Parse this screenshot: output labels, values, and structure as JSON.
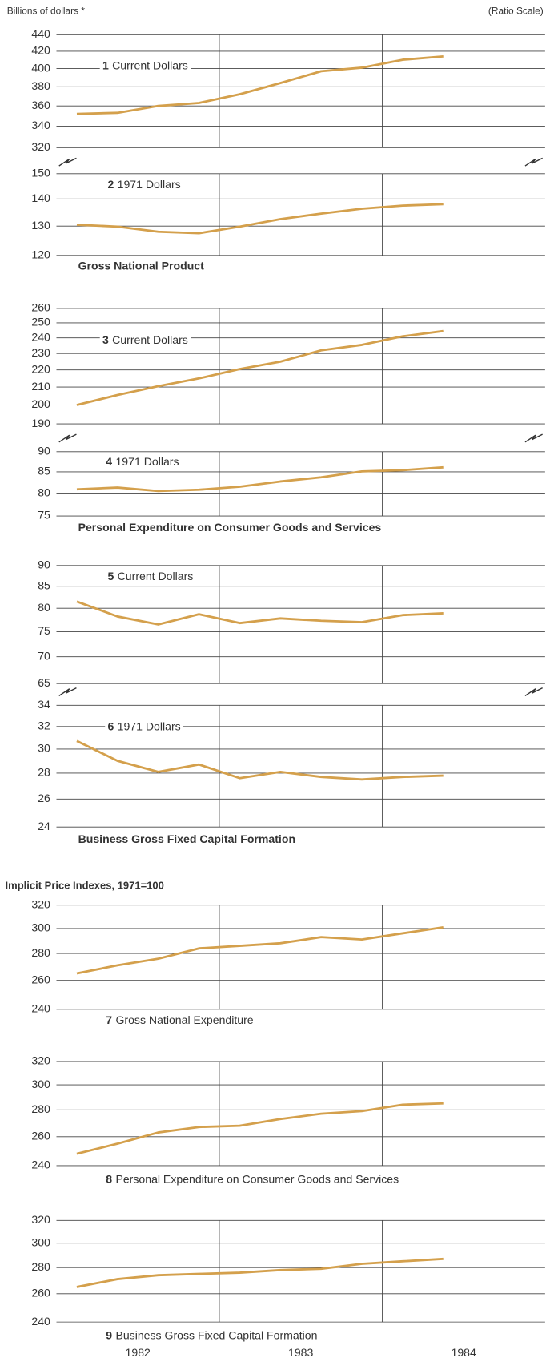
{
  "chart_data": {
    "type": "line",
    "log": true,
    "grid": true,
    "color": "#d4a04c",
    "header_left": "Billions of dollars *",
    "header_right": "(Ratio Scale)",
    "price_title": "Implicit Price Indexes, 1971=100",
    "captions": [
      "Gross National Product",
      "Personal Expenditure on Consumer Goods and Services",
      "Business Gross Fixed Capital Formation"
    ],
    "x": [
      1982.125,
      1982.375,
      1982.625,
      1982.875,
      1983.125,
      1983.375,
      1983.625,
      1983.875,
      1984.125,
      1984.375
    ],
    "xlim": [
      1982,
      1985
    ],
    "xgrid": [
      1983,
      1984
    ],
    "xticks": [
      {
        "value": 1982.5,
        "label": "1982"
      },
      {
        "value": 1983.5,
        "label": "1983"
      },
      {
        "value": 1984.5,
        "label": "1984"
      }
    ],
    "charts": [
      {
        "number": "1",
        "name": "Current Dollars",
        "ylim": [
          320,
          440
        ],
        "yticks": [
          320,
          340,
          360,
          380,
          400,
          420,
          440
        ],
        "values": [
          352,
          353,
          360,
          363,
          372,
          384,
          397,
          401,
          410,
          414
        ]
      },
      {
        "number": "2",
        "name": "1971 Dollars",
        "ylim": [
          120,
          150
        ],
        "yticks": [
          120,
          130,
          140,
          150
        ],
        "values": [
          130.5,
          129.8,
          128,
          127.5,
          129.8,
          132.5,
          134.5,
          136.3,
          137.5,
          138
        ]
      },
      {
        "number": "3",
        "name": "Current Dollars",
        "ylim": [
          190,
          260
        ],
        "yticks": [
          190,
          200,
          210,
          220,
          230,
          240,
          250,
          260
        ],
        "values": [
          200,
          205.5,
          210.5,
          215,
          220.5,
          225,
          232,
          235.5,
          241,
          244.5
        ]
      },
      {
        "number": "4",
        "name": "1971 Dollars",
        "ylim": [
          75,
          90
        ],
        "yticks": [
          75,
          80,
          85,
          90
        ],
        "values": [
          80.9,
          81.3,
          80.5,
          80.8,
          81.5,
          82.7,
          83.7,
          85.1,
          85.4,
          86.1
        ]
      },
      {
        "number": "5",
        "name": "Current Dollars",
        "ylim": [
          65,
          90
        ],
        "yticks": [
          65,
          70,
          75,
          80,
          85,
          90
        ],
        "values": [
          81.5,
          78.2,
          76.5,
          78.7,
          76.8,
          77.8,
          77.3,
          77.0,
          78.5,
          78.9
        ]
      },
      {
        "number": "6",
        "name": "1971 Dollars",
        "ylim": [
          24,
          34
        ],
        "yticks": [
          24,
          26,
          28,
          30,
          32,
          34
        ],
        "values": [
          30.7,
          29.0,
          28.1,
          28.7,
          27.6,
          28.1,
          27.7,
          27.5,
          27.7,
          27.8
        ]
      },
      {
        "number": "7",
        "name": "Gross National Expenditure",
        "ylim": [
          240,
          320
        ],
        "yticks": [
          240,
          260,
          280,
          300,
          320
        ],
        "values": [
          265,
          271,
          276,
          284,
          286,
          288,
          293,
          291,
          296,
          301
        ]
      },
      {
        "number": "8",
        "name": "Personal Expenditure on Consumer Goods and Services",
        "ylim": [
          240,
          320
        ],
        "yticks": [
          240,
          260,
          280,
          300,
          320
        ],
        "values": [
          248,
          255,
          263,
          267,
          268,
          273,
          277,
          279,
          284,
          285
        ]
      },
      {
        "number": "9",
        "name": "Business Gross Fixed Capital Formation",
        "ylim": [
          240,
          320
        ],
        "yticks": [
          240,
          260,
          280,
          300,
          320
        ],
        "values": [
          265,
          271,
          274,
          275,
          276,
          278,
          279,
          283,
          285,
          287
        ]
      }
    ]
  }
}
